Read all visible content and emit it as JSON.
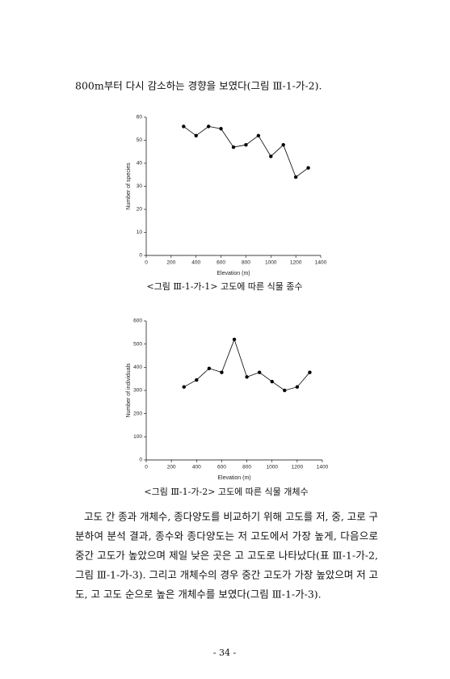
{
  "document": {
    "intro_line": "800m부터 다시 감소하는 경향을 보였다(그림 Ⅲ-1-가-2).",
    "captions": [
      "<그림 Ⅲ-1-가-1> 고도에 따른 식물 종수",
      "<그림 Ⅲ-1-가-2> 고도에 따른 식물 개체수"
    ],
    "body_lines": [
      "고도 간 종과 개체수, 종다양도를 비교하기 위해 고도를 저, 중, 고로 구",
      "분하여 분석 결과, 종수와 종다양도는 저 고도에서 가장 높게, 다음으로",
      "중간 고도가 높았으며 제일 낮은 곳은 고 고도로 나타났다(표 Ⅲ-1-가-2,",
      "그림 Ⅲ-1-가-3). 그리고 개체수의 경우 중간 고도가 가장 높았으며 저 고",
      "도, 고 고도 순으로 높은 개체수를 보였다(그림 Ⅲ-1-가-3)."
    ],
    "page_number": "- 34 -"
  },
  "chart_data": [
    {
      "type": "line",
      "x_label": "Elevation (m)",
      "y_label": "Number of species",
      "x": [
        300,
        400,
        500,
        600,
        700,
        800,
        900,
        1000,
        1100,
        1200,
        1300
      ],
      "values": [
        56,
        52,
        56,
        55,
        47,
        48,
        52,
        43,
        48,
        34,
        38
      ],
      "color": "#000000",
      "xlim": [
        0,
        1400
      ],
      "xticks": [
        0,
        200,
        400,
        600,
        800,
        1000,
        1200,
        1400
      ],
      "ylim": [
        0,
        60
      ],
      "yticks": [
        0,
        10,
        20,
        30,
        40,
        50,
        60
      ]
    },
    {
      "type": "line",
      "x_label": "Elevation (m)",
      "y_label": "Number of individuals",
      "x": [
        300,
        400,
        500,
        600,
        700,
        800,
        900,
        1000,
        1100,
        1200,
        1300
      ],
      "values": [
        315,
        345,
        395,
        378,
        520,
        358,
        378,
        338,
        300,
        315,
        378
      ],
      "color": "#000000",
      "xlim": [
        0,
        1400
      ],
      "xticks": [
        0,
        200,
        400,
        600,
        800,
        1000,
        1200,
        1400
      ],
      "ylim": [
        0,
        600
      ],
      "yticks": [
        0,
        100,
        200,
        300,
        400,
        500,
        600
      ]
    }
  ]
}
